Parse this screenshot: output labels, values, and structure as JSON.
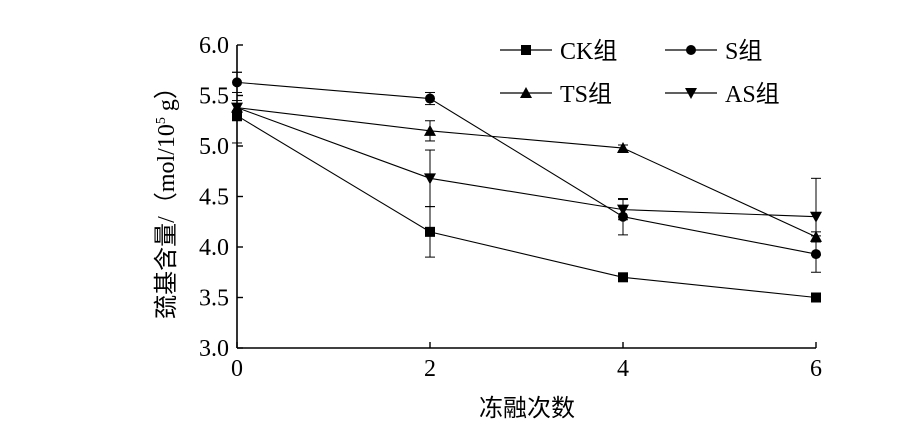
{
  "chart_data": {
    "type": "line",
    "title": "",
    "xlabel": "冻融次数",
    "ylabel": "巯基含量/（mol/10",
    "ylabel_sup": "5",
    "ylabel_tail": " g）",
    "x": [
      0,
      2,
      4,
      6
    ],
    "xlim": [
      0,
      6
    ],
    "ylim": [
      3.0,
      6.0
    ],
    "xticks": [
      "0",
      "2",
      "4",
      "6"
    ],
    "yticks": [
      "3.0",
      "3.5",
      "4.0",
      "4.5",
      "5.0",
      "5.5",
      "6.0"
    ],
    "grid": false,
    "legend_position": "top-right",
    "series": [
      {
        "name": "CK组",
        "marker": "square",
        "values": [
          5.3,
          4.15,
          3.7,
          3.5
        ],
        "errors": [
          0.05,
          0.25,
          0.03,
          0.03
        ]
      },
      {
        "name": "S组",
        "marker": "circle",
        "values": [
          5.63,
          5.47,
          4.3,
          3.93
        ],
        "errors": [
          0.1,
          0.06,
          0.18,
          0.18
        ]
      },
      {
        "name": "TS组",
        "marker": "triangle-up",
        "values": [
          5.38,
          5.15,
          4.98,
          4.1
        ],
        "errors": [
          0.07,
          0.1,
          0.03,
          0.05
        ]
      },
      {
        "name": "AS组",
        "marker": "triangle-down",
        "values": [
          5.38,
          4.68,
          4.37,
          4.3
        ],
        "errors": [
          0.35,
          0.28,
          0.1,
          0.38
        ]
      }
    ]
  }
}
